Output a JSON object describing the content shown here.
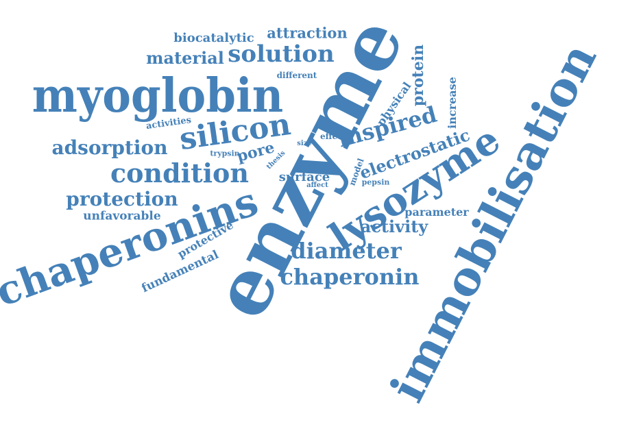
{
  "word_cloud": {
    "color": "#4581b8",
    "words": [
      "immobilisation",
      "enzyme",
      "myoglobin",
      "chaperonins",
      "lysozyme",
      "silicon",
      "condition",
      "solution",
      "inspired",
      "chaperonin",
      "diameter",
      "adsorption",
      "protection",
      "activity",
      "electrostatic",
      "material",
      "attraction",
      "biocatalytic",
      "pore",
      "protein",
      "surface",
      "parameter",
      "unfavorable",
      "fundamental",
      "protective",
      "physical",
      "increase",
      "different",
      "activities",
      "effect",
      "trypsin",
      "size",
      "thesis",
      "model",
      "pepsin",
      "affect"
    ]
  }
}
